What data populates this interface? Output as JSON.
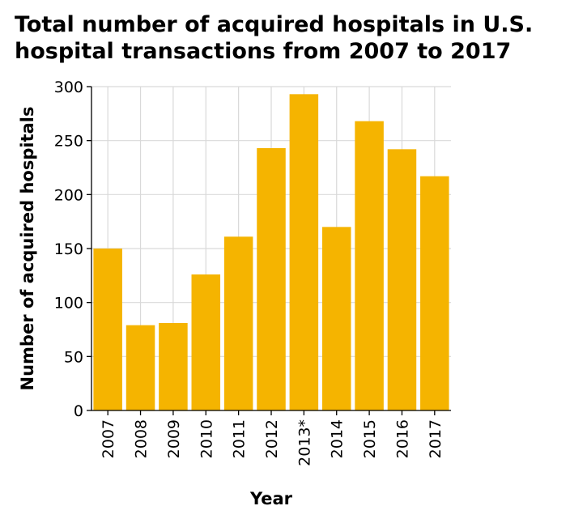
{
  "chart_data": {
    "type": "bar",
    "title_lines": [
      "Total number of acquired hospitals in U.S.",
      "hospital transactions from 2007 to 2017"
    ],
    "xlabel": "Year",
    "ylabel": "Number of acquired hospitals",
    "categories": [
      "2007",
      "2008",
      "2009",
      "2010",
      "2011",
      "2012",
      "2013*",
      "2014",
      "2015",
      "2016",
      "2017"
    ],
    "values": [
      150,
      79,
      81,
      126,
      161,
      243,
      293,
      170,
      268,
      242,
      217
    ],
    "ylim": [
      0,
      300
    ],
    "yticks": [
      0,
      50,
      100,
      150,
      200,
      250,
      300
    ],
    "grid": true,
    "bar_color": "#F5B400",
    "grid_color": "#d9d9d9"
  }
}
